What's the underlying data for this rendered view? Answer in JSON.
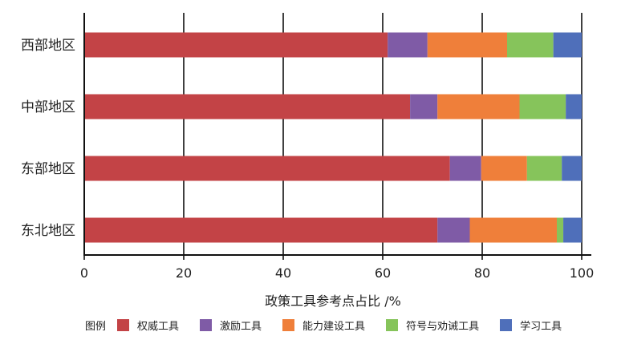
{
  "chart_data": {
    "type": "bar",
    "orientation": "horizontal",
    "stacked": true,
    "categories": [
      "西部地区",
      "中部地区",
      "东部地区",
      "东北地区"
    ],
    "series": [
      {
        "name": "权威工具",
        "color": "#c34346",
        "values": [
          61,
          65.5,
          73.5,
          71
        ]
      },
      {
        "name": "激励工具",
        "color": "#7f5ba6",
        "values": [
          8,
          5.5,
          6.3,
          6.5
        ]
      },
      {
        "name": "能力建设工具",
        "color": "#ef7f3a",
        "values": [
          16,
          16.5,
          9.2,
          17.5
        ]
      },
      {
        "name": "符号与劝诫工具",
        "color": "#86c45b",
        "values": [
          9.3,
          9.3,
          7,
          1.3
        ]
      },
      {
        "name": "学习工具",
        "color": "#4f6fba",
        "values": [
          5.7,
          3.2,
          4,
          3.7
        ]
      }
    ],
    "xlabel": "政策工具参考点占比 /%",
    "xlim": [
      0,
      100
    ],
    "xticks": [
      0,
      20,
      40,
      60,
      80,
      100
    ],
    "grid": "vertical",
    "legend_title": "图例",
    "legend_position": "bottom"
  }
}
